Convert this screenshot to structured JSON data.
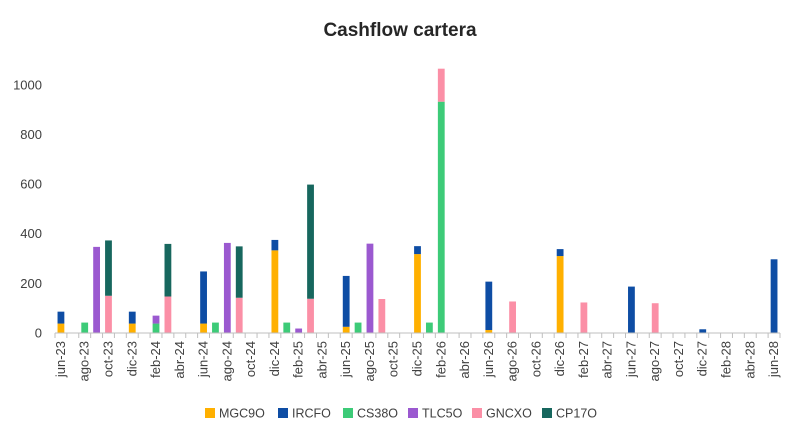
{
  "chart_data": {
    "type": "bar",
    "stacked": true,
    "title": "Cashflow cartera",
    "xlabel": "",
    "ylabel": "",
    "ylim": [
      0,
      1100
    ],
    "yticks": [
      0,
      200,
      400,
      600,
      800,
      1000
    ],
    "legend_position": "bottom",
    "categories": [
      "jun-23",
      "jul-23",
      "ago-23",
      "sep-23",
      "oct-23",
      "nov-23",
      "dic-23",
      "ene-24",
      "feb-24",
      "mar-24",
      "abr-24",
      "may-24",
      "jun-24",
      "jul-24",
      "ago-24",
      "sep-24",
      "oct-24",
      "nov-24",
      "dic-24",
      "ene-25",
      "feb-25",
      "mar-25",
      "abr-25",
      "may-25",
      "jun-25",
      "jul-25",
      "ago-25",
      "sep-25",
      "oct-25",
      "nov-25",
      "dic-25",
      "ene-26",
      "feb-26",
      "mar-26",
      "abr-26",
      "may-26",
      "jun-26",
      "jul-26",
      "ago-26",
      "sep-26",
      "oct-26",
      "nov-26",
      "dic-26",
      "ene-27",
      "feb-27",
      "mar-27",
      "abr-27",
      "may-27",
      "jun-27",
      "jul-27",
      "ago-27",
      "sep-27",
      "oct-27",
      "nov-27",
      "dic-27",
      "ene-28",
      "feb-28",
      "mar-28",
      "abr-28",
      "may-28",
      "jun-28"
    ],
    "tick_labels": [
      "jun-23",
      "ago-23",
      "oct-23",
      "dic-23",
      "feb-24",
      "abr-24",
      "jun-24",
      "ago-24",
      "oct-24",
      "dic-24",
      "feb-25",
      "abr-25",
      "jun-25",
      "ago-25",
      "oct-25",
      "dic-25",
      "feb-26",
      "abr-26",
      "jun-26",
      "ago-26",
      "oct-26",
      "dic-26",
      "feb-27",
      "abr-27",
      "jun-27",
      "ago-27",
      "oct-27",
      "dic-27",
      "feb-28",
      "abr-28",
      "jun-28"
    ],
    "series": [
      {
        "name": "MGC9O",
        "color": "#FFB000",
        "values": {
          "jun-23": 38,
          "dic-23": 38,
          "jun-24": 38,
          "dic-24": 333,
          "jun-25": 25,
          "dic-25": 318,
          "jun-26": 12,
          "dic-26": 310
        }
      },
      {
        "name": "IRCFO",
        "color": "#0E4DA4",
        "values": {
          "jun-23": 48,
          "dic-23": 48,
          "jun-24": 210,
          "dic-24": 42,
          "jun-25": 205,
          "dic-25": 32,
          "jun-26": 195,
          "dic-26": 28,
          "jun-27": 187,
          "dic-27": 15,
          "jun-28": 297
        }
      },
      {
        "name": "CS38O",
        "color": "#3DCB78",
        "values": {
          "ago-23": 42,
          "feb-24": 38,
          "jul-24": 42,
          "ene-25": 42,
          "jul-25": 42,
          "ene-26": 42,
          "feb-26": 932
        }
      },
      {
        "name": "TLC5O",
        "color": "#9B59D0",
        "values": {
          "sep-23": 347,
          "feb-24": 32,
          "ago-24": 363,
          "feb-25": 18,
          "ago-25": 360
        }
      },
      {
        "name": "GNCXO",
        "color": "#FB8FA6",
        "values": {
          "oct-23": 150,
          "mar-24": 147,
          "sep-24": 142,
          "mar-25": 138,
          "sep-25": 137,
          "feb-26": 133,
          "ago-26": 127,
          "feb-27": 123,
          "ago-27": 120
        }
      },
      {
        "name": "CP17O",
        "color": "#17675E",
        "values": {
          "oct-23": 223,
          "mar-24": 212,
          "sep-24": 207,
          "mar-25": 460
        }
      }
    ]
  }
}
